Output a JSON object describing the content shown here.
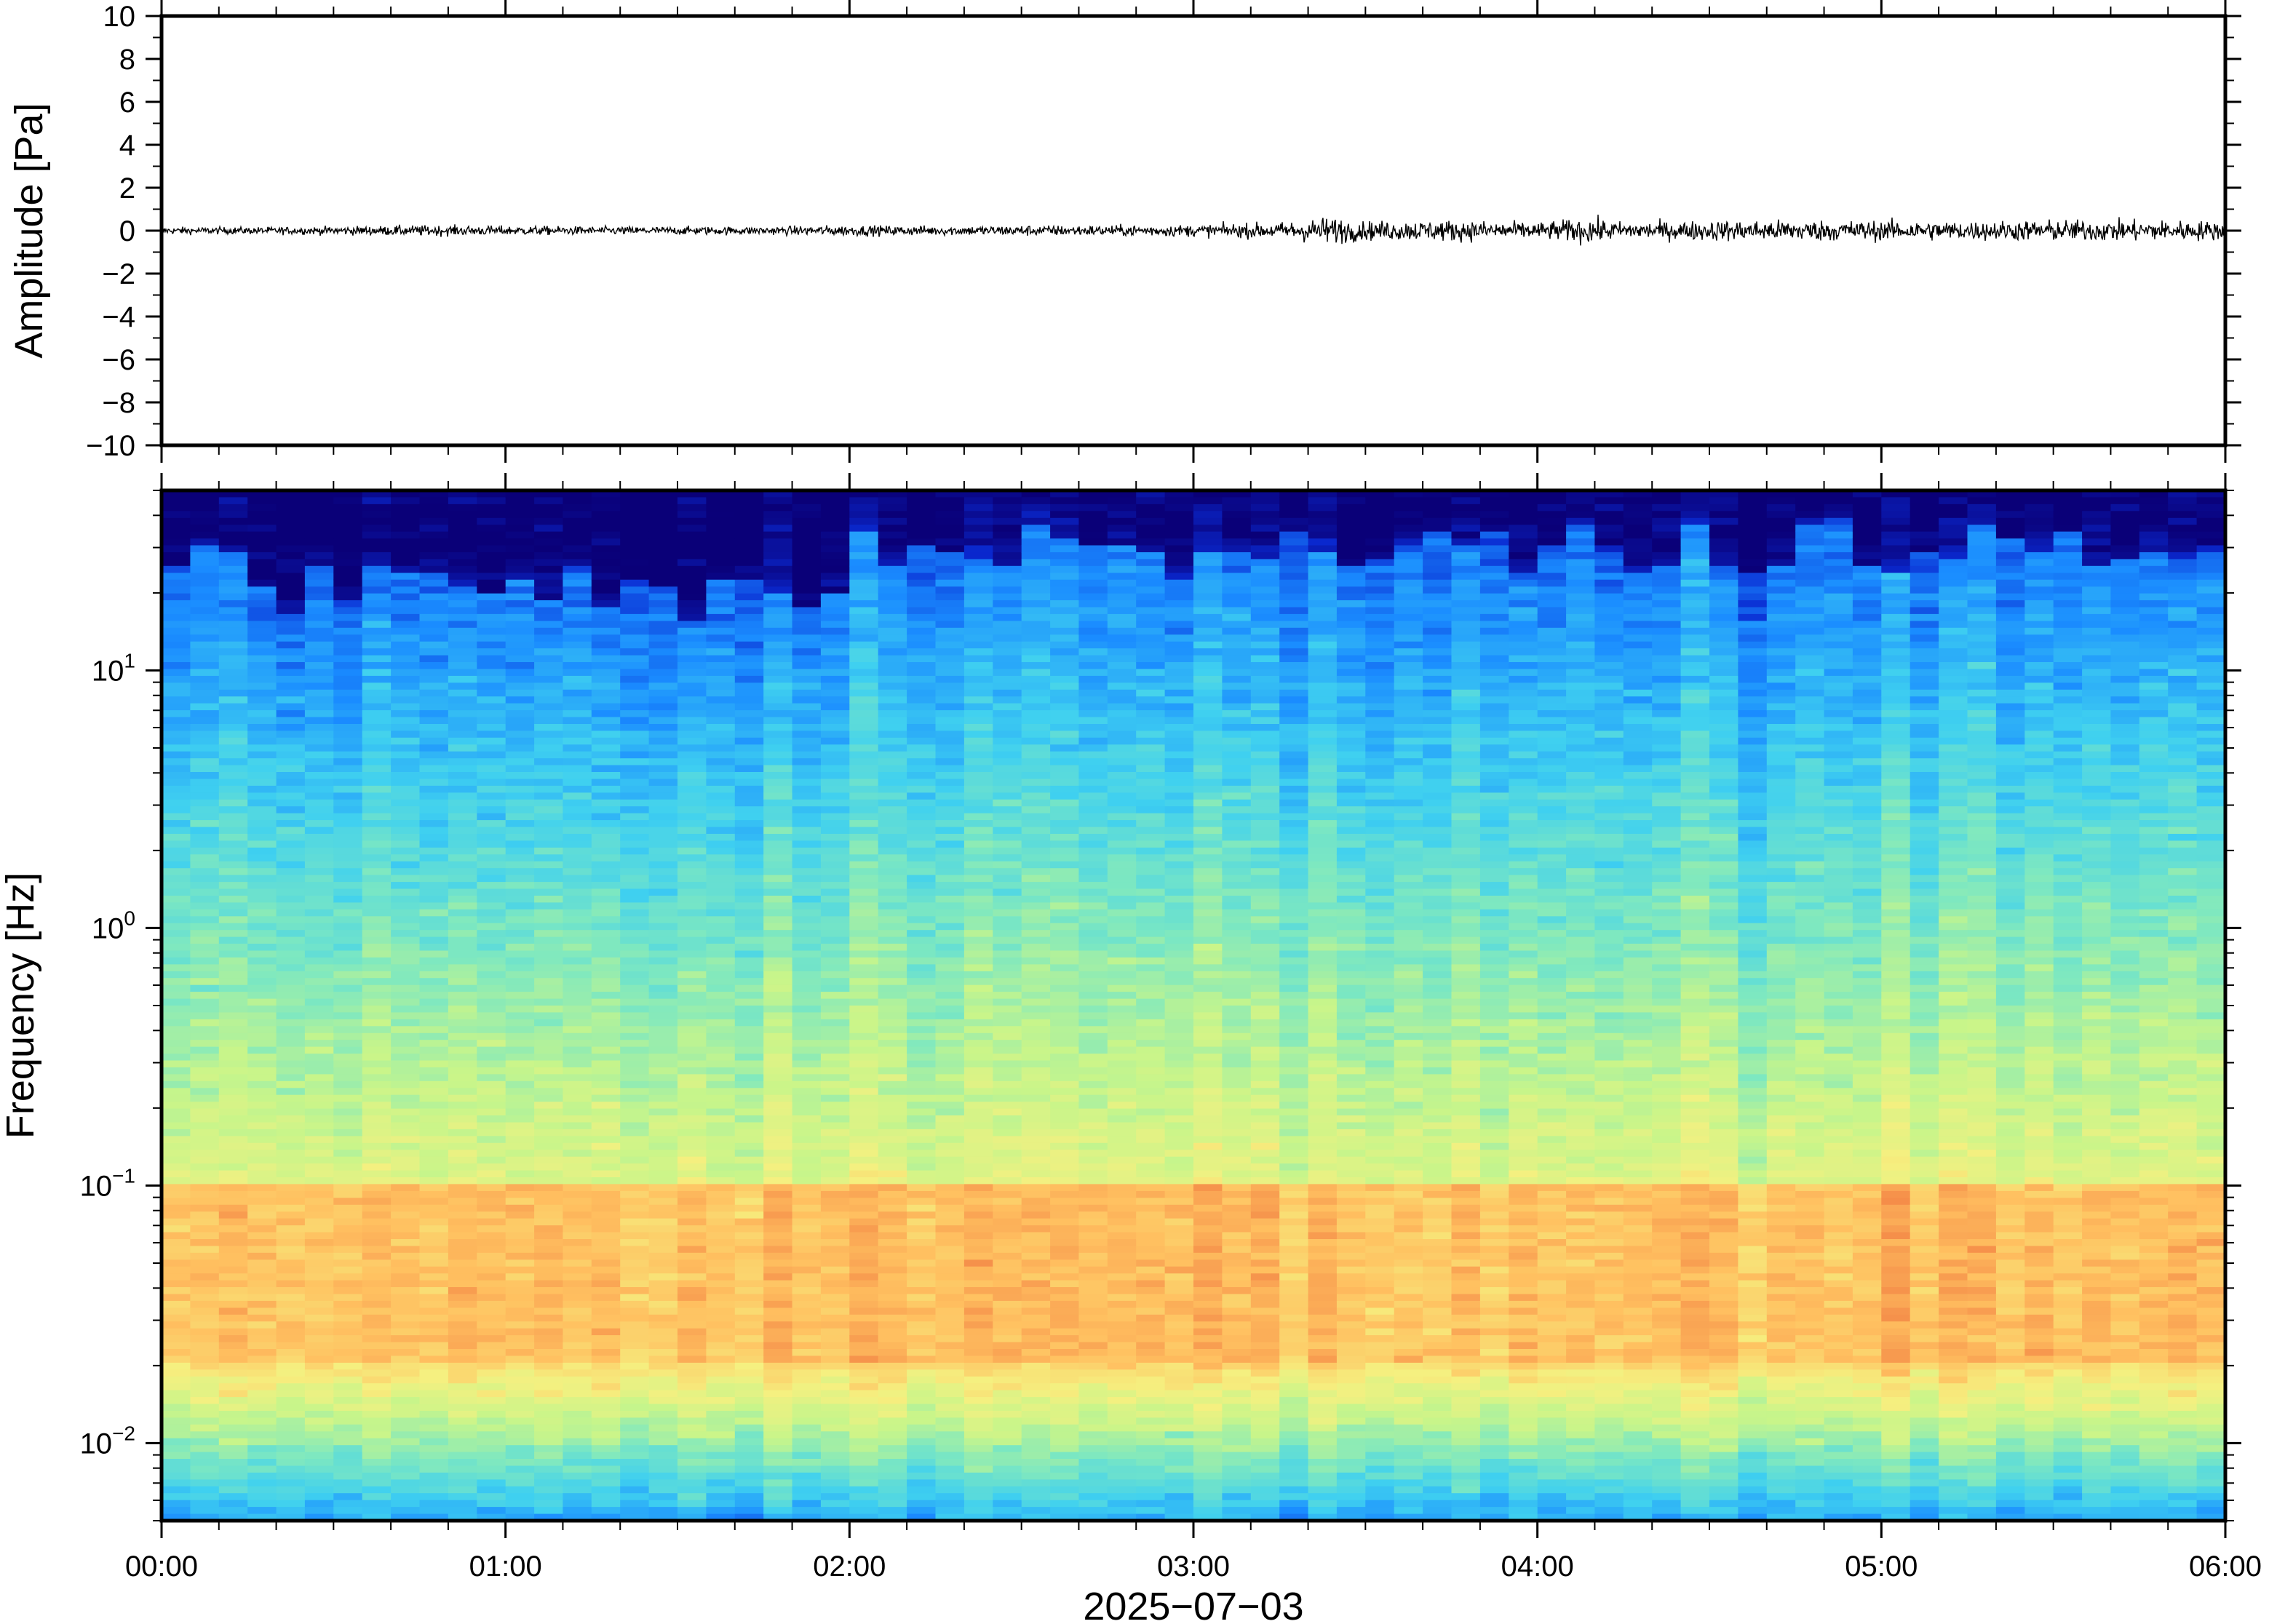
{
  "chart_data": [
    {
      "type": "line",
      "title": "",
      "xlabel": "",
      "ylabel": "Amplitude [Pa]",
      "xlim": [
        "00:00",
        "06:00"
      ],
      "ylim": [
        -10,
        10
      ],
      "y_ticks": [
        10,
        8,
        6,
        4,
        2,
        0,
        -2,
        -4,
        -6,
        -8,
        -10
      ],
      "y_tick_labels": [
        "10",
        "8",
        "6",
        "4",
        "2",
        "0",
        "−2",
        "−4",
        "−6",
        "−8",
        "−10"
      ],
      "grid": false,
      "series": [
        {
          "color": "#000000",
          "x": [
            "00:00",
            "00:15",
            "00:30",
            "00:45",
            "01:00",
            "01:15",
            "01:30",
            "01:45",
            "02:00",
            "02:15",
            "02:30",
            "02:45",
            "03:00",
            "03:15",
            "03:24",
            "03:30",
            "03:45",
            "04:00",
            "04:09",
            "04:15",
            "04:30",
            "04:45",
            "05:00",
            "05:15",
            "05:30",
            "05:45",
            "06:00"
          ],
          "envelope": [
            0.3,
            0.3,
            0.35,
            0.45,
            0.4,
            0.35,
            0.35,
            0.35,
            0.45,
            0.4,
            0.45,
            0.45,
            0.5,
            0.7,
            1.2,
            0.8,
            0.9,
            0.7,
            1.1,
            0.7,
            0.85,
            0.9,
            0.85,
            0.8,
            0.9,
            0.9,
            0.8
          ]
        }
      ]
    },
    {
      "type": "heatmap",
      "title": "",
      "xlabel": "2025−07−03",
      "ylabel": "Frequency [Hz]",
      "y_scale": "log",
      "xlim": [
        "00:00",
        "06:00"
      ],
      "ylim": [
        0.005,
        50
      ],
      "y_ticks": [
        0.01,
        0.1,
        1,
        10
      ],
      "y_tick_labels": [
        {
          "base": "10",
          "exp": "−2"
        },
        {
          "base": "10",
          "exp": "−1"
        },
        {
          "base": "10",
          "exp": "0"
        },
        {
          "base": "10",
          "exp": "1"
        }
      ],
      "x_ticks": [
        "00:00",
        "01:00",
        "02:00",
        "03:00",
        "04:00",
        "05:00",
        "06:00"
      ],
      "x_tick_labels": [
        "00:00",
        "01:00",
        "02:00",
        "03:00",
        "04:00",
        "05:00",
        "06:00"
      ],
      "colormap": [
        "#0a0078",
        "#0a2ad2",
        "#1a8cff",
        "#3fd0f0",
        "#7ee8c0",
        "#c8f58a",
        "#f5f080",
        "#ffc060",
        "#f48a48",
        "#e0403a"
      ],
      "grid": false,
      "description_of_levels": {
        "top_band_hz": 30,
        "energy_peak_hz": [
          0.02,
          0.1
        ],
        "time_columns_min": 5
      }
    }
  ]
}
